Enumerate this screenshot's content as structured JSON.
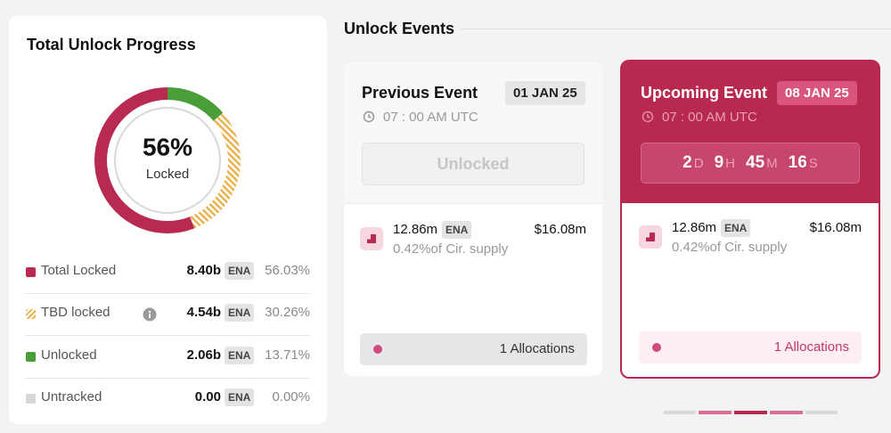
{
  "progress": {
    "title": "Total Unlock Progress",
    "center_value": "56%",
    "center_label": "Locked",
    "rows": [
      {
        "name": "Total Locked",
        "amount": "8.40b",
        "token": "ENA",
        "color": "#b82a52"
      },
      {
        "name": "TBD locked",
        "amount": "4.54b",
        "token": "ENA",
        "color": "#e9b24f",
        "striped": true
      },
      {
        "name": "Unlocked",
        "amount": "2.06b",
        "token": "ENA",
        "color": "#4a9e3a"
      },
      {
        "name": "Untracked",
        "amount": "0.00",
        "token": "ENA",
        "color": "#d6d6d6"
      }
    ],
    "values": [
      56.03,
      30.26,
      13.71,
      0.0
    ],
    "value_labels": [
      "56.03%",
      "30.26%",
      "13.71%",
      "0.00%"
    ]
  },
  "events": {
    "title": "Unlock Events",
    "previous": {
      "title": "Previous Event",
      "date": "01 JAN 25",
      "time": "07 : 00 AM UTC",
      "status": "Unlocked",
      "amount": "12.86m",
      "token": "ENA",
      "usd": "$16.08m",
      "supply": "0.42%of Cir. supply",
      "allocations": "1 Allocations"
    },
    "upcoming": {
      "title": "Upcoming Event",
      "date": "08 JAN 25",
      "time": "07 : 00 AM UTC",
      "countdown": [
        {
          "value": "2",
          "unit": "D"
        },
        {
          "value": "9",
          "unit": "H"
        },
        {
          "value": "45",
          "unit": "M"
        },
        {
          "value": "16",
          "unit": "S"
        }
      ],
      "amount": "12.86m",
      "token": "ENA",
      "usd": "$16.08m",
      "supply": "0.42%of Cir. supply",
      "allocations": "1 Allocations"
    }
  }
}
